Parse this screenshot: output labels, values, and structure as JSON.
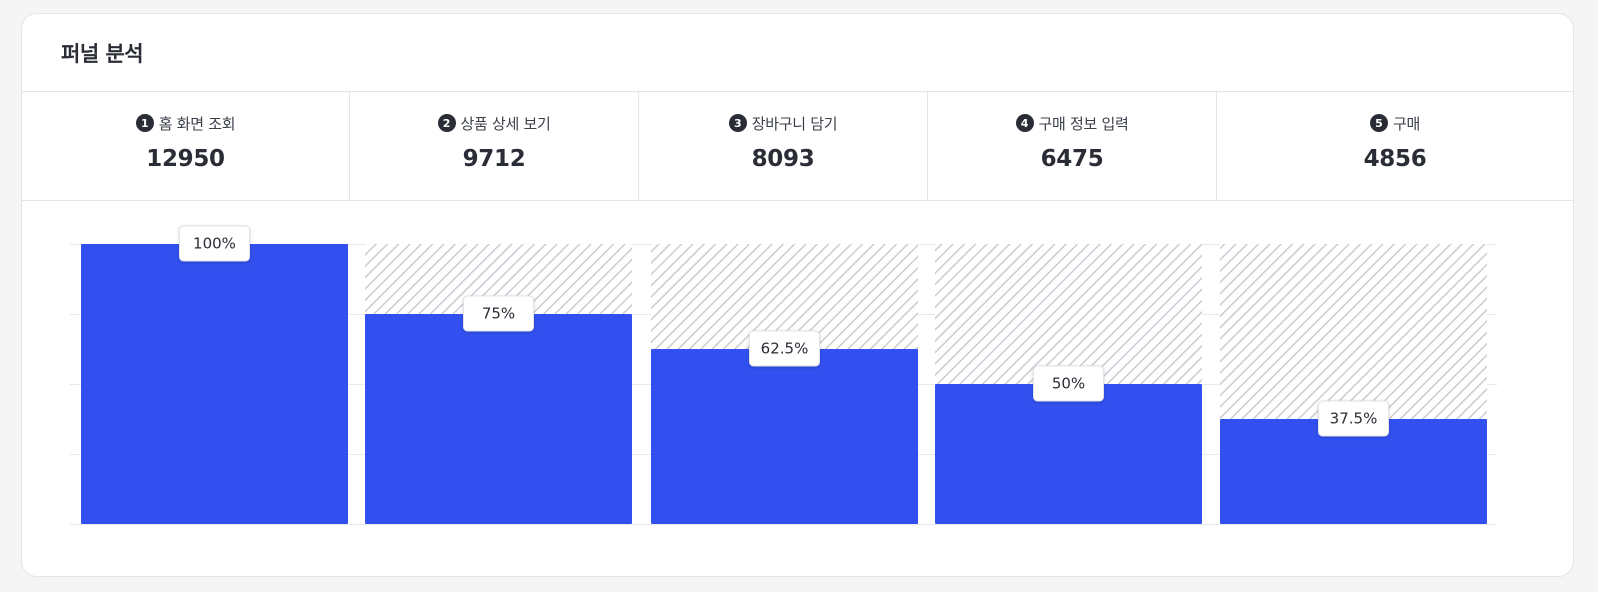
{
  "card": {
    "title": "퍼널 분석"
  },
  "steps": [
    {
      "num": "1",
      "label": "홈 화면 조회",
      "value": "12950"
    },
    {
      "num": "2",
      "label": "상품 상세 보기",
      "value": "9712"
    },
    {
      "num": "3",
      "label": "장바구니 담기",
      "value": "8093"
    },
    {
      "num": "4",
      "label": "구매 정보 입력",
      "value": "6475"
    },
    {
      "num": "5",
      "label": "구매",
      "value": "4856"
    }
  ],
  "colors": {
    "bar": "#3150ef",
    "hatch_bg": "#ffffff",
    "hatch_line": "#c9ccd3",
    "grid": "#e6e8eb"
  },
  "chart_data": {
    "type": "bar",
    "categories": [
      "홈 화면 조회",
      "상품 상세 보기",
      "장바구니 담기",
      "구매 정보 입력",
      "구매"
    ],
    "values": [
      100,
      75,
      62.5,
      50,
      37.5
    ],
    "value_labels": [
      "100%",
      "75%",
      "62.5%",
      "50%",
      "37.5%"
    ],
    "ylim": [
      0,
      100
    ],
    "grid": true,
    "remainder_style": "hatched",
    "title": "",
    "xlabel": "",
    "ylabel": ""
  }
}
